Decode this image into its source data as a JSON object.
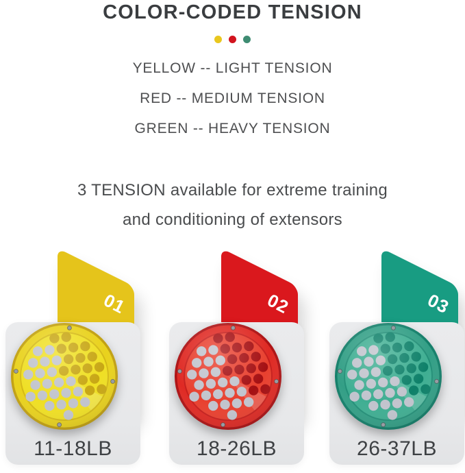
{
  "header": {
    "title": "COLOR-CODED TENSION"
  },
  "legend": {
    "dots": [
      {
        "name": "yellow",
        "color": "#E9C71E"
      },
      {
        "name": "red",
        "color": "#D2141E"
      },
      {
        "name": "green",
        "color": "#3E8C72"
      }
    ],
    "lines": [
      "YELLOW -- LIGHT TENSION",
      "RED -- MEDIUM TENSION",
      "GREEN -- HEAVY TENSION"
    ]
  },
  "description": {
    "line1": "3 TENSION available for extreme training",
    "line2": "and conditioning of extensors"
  },
  "products": [
    {
      "number": "01",
      "weight": "11-18LB",
      "panel_color": "#E5C41B",
      "rim_color": "#E9D21D",
      "face_color": "#EFDF24",
      "edge_color": "#C2A112",
      "hole_dark": "#C8A715"
    },
    {
      "number": "02",
      "weight": "18-26LB",
      "panel_color": "#DA181D",
      "rim_color": "#DF2A24",
      "face_color": "#E8402F",
      "edge_color": "#AD1315",
      "hole_dark": "#A51013"
    },
    {
      "number": "03",
      "weight": "26-37LB",
      "panel_color": "#189C82",
      "rim_color": "#339F86",
      "face_color": "#3FAE92",
      "edge_color": "#147F6A",
      "hole_dark": "#0E8069"
    }
  ],
  "hole_gray": "#C1C4CD",
  "text_colors": {
    "title": "#3A3D40",
    "body": "#4E4F51",
    "label": "#3E4144"
  }
}
